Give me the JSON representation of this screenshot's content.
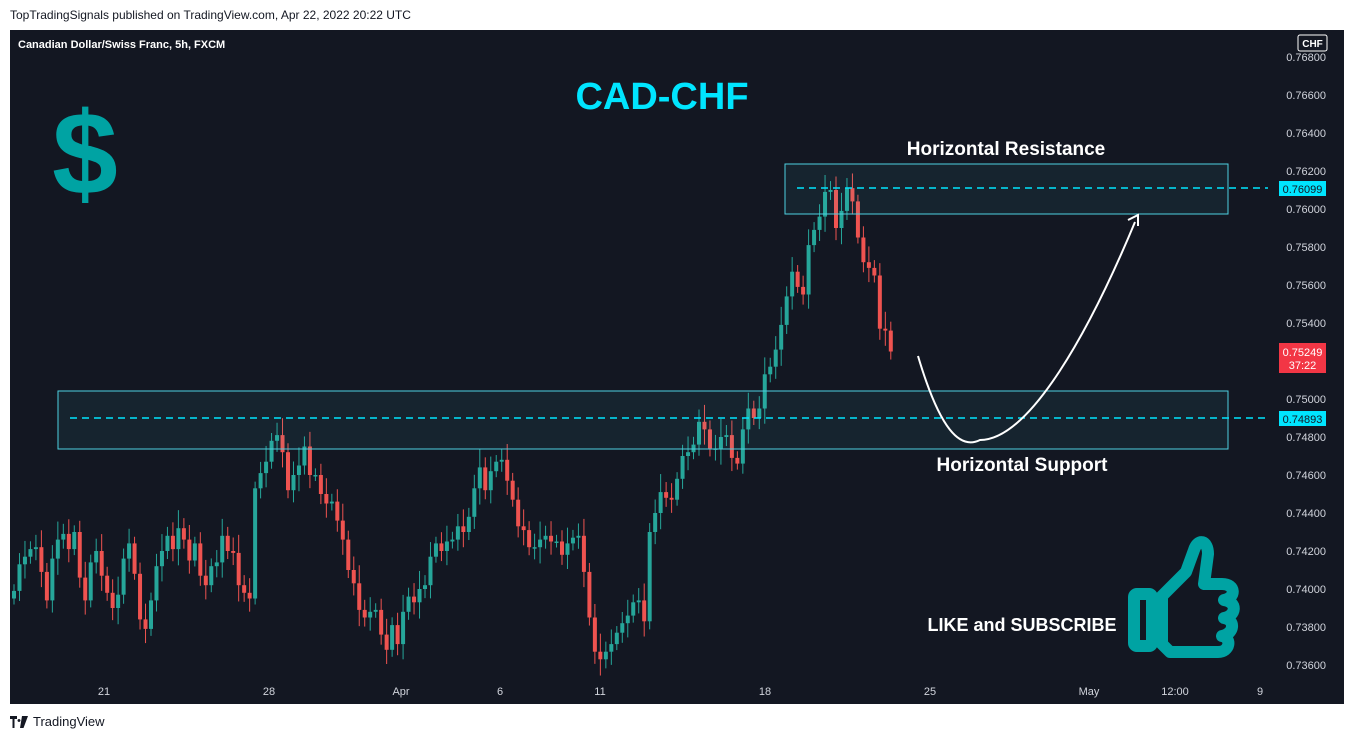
{
  "header": {
    "published": "TopTradingSignals published on TradingView.com, Apr 22, 2022 20:22 UTC"
  },
  "footer": {
    "brand": "TradingView"
  },
  "chart": {
    "symbol": "Canadian Dollar/Swiss Franc, 5h, FXCM",
    "title": "CAD-CHF",
    "currency_label": "CHF",
    "dollar_sign": "$",
    "resistance_label": "Horizontal Resistance",
    "support_label": "Horizontal Support",
    "cta_label": "LIKE and SUBSCRIBE",
    "resistance_price": "0.76099",
    "support_price": "0.74893",
    "last_price": "0.75249",
    "countdown": "37:22",
    "y_ticks": [
      "0.76800",
      "0.76600",
      "0.76400",
      "0.76200",
      "0.76000",
      "0.75800",
      "0.75600",
      "0.75400",
      "0.75000",
      "0.74800",
      "0.74600",
      "0.74400",
      "0.74200",
      "0.74000",
      "0.73800",
      "0.73600"
    ],
    "x_ticks": [
      "21",
      "28",
      "Apr",
      "6",
      "11",
      "18",
      "25",
      "May",
      "12:00",
      "9"
    ],
    "colors": {
      "up": "#26a69a",
      "down": "#ef5350",
      "accent": "#00e5ff",
      "zone": "#4dd0e1",
      "badge_red": "#f23645",
      "logo": "#00a3a3",
      "bg": "#131722"
    }
  },
  "chart_data": {
    "type": "candlestick",
    "title": "CAD-CHF",
    "y_axis_label": "CHF",
    "ylim": [
      0.7355,
      0.7685
    ],
    "x_ticks": [
      "21",
      "28",
      "Apr",
      "6",
      "11",
      "18",
      "25",
      "May",
      "12:00",
      "9"
    ],
    "resistance_zone": [
      0.75972,
      0.76236
    ],
    "resistance_level": 0.76099,
    "support_zone": [
      0.74736,
      0.75048
    ],
    "support_level": 0.74893,
    "last_price": 0.75249,
    "close_series": [
      0.7399,
      0.7413,
      0.7417,
      0.7421,
      0.7422,
      0.7409,
      0.7394,
      0.7416,
      0.7426,
      0.7429,
      0.7421,
      0.743,
      0.7406,
      0.7394,
      0.7414,
      0.742,
      0.7407,
      0.7398,
      0.739,
      0.7397,
      0.7416,
      0.7424,
      0.7408,
      0.7384,
      0.7379,
      0.7394,
      0.7412,
      0.742,
      0.7428,
      0.7421,
      0.7432,
      0.7426,
      0.7415,
      0.7424,
      0.7407,
      0.7402,
      0.7412,
      0.7414,
      0.7428,
      0.742,
      0.7419,
      0.7402,
      0.7398,
      0.7395,
      0.7453,
      0.7461,
      0.7467,
      0.7478,
      0.7481,
      0.7472,
      0.7452,
      0.746,
      0.7465,
      0.7475,
      0.746,
      0.746,
      0.745,
      0.7445,
      0.7446,
      0.7436,
      0.7426,
      0.741,
      0.7403,
      0.7389,
      0.7385,
      0.7388,
      0.7389,
      0.7376,
      0.7368,
      0.7381,
      0.7371,
      0.7388,
      0.7396,
      0.7393,
      0.74,
      0.7402,
      0.7417,
      0.7424,
      0.742,
      0.7425,
      0.7426,
      0.7433,
      0.743,
      0.7438,
      0.7453,
      0.7464,
      0.7452,
      0.7462,
      0.7467,
      0.7468,
      0.7457,
      0.7447,
      0.7433,
      0.7431,
      0.7422,
      0.7422,
      0.7426,
      0.7428,
      0.7425,
      0.7425,
      0.7418,
      0.7424,
      0.7427,
      0.7428,
      0.7409,
      0.7385,
      0.7367,
      0.7363,
      0.7367,
      0.7371,
      0.7377,
      0.7382,
      0.7386,
      0.7393,
      0.7394,
      0.7383,
      0.743,
      0.744,
      0.7451,
      0.7448,
      0.7447,
      0.7458,
      0.747,
      0.7472,
      0.7476,
      0.7488,
      0.7484,
      0.7474,
      0.7474,
      0.748,
      0.7481,
      0.7469,
      0.7466,
      0.7484,
      0.7495,
      0.749,
      0.7495,
      0.7513,
      0.7517,
      0.7526,
      0.7539,
      0.7554,
      0.7567,
      0.7559,
      0.7555,
      0.7581,
      0.7589,
      0.7596,
      0.7609,
      0.761,
      0.759,
      0.7599,
      0.7611,
      0.7604,
      0.7585,
      0.7572,
      0.7569,
      0.7565,
      0.7537,
      0.7536,
      0.7525
    ]
  }
}
